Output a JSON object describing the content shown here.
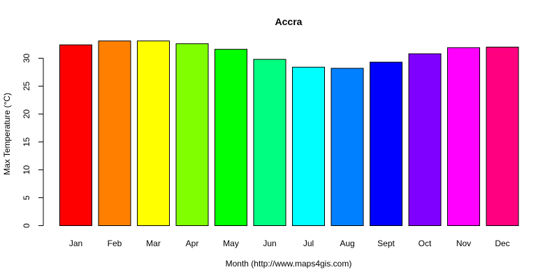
{
  "chart_data": {
    "type": "bar",
    "title": "Accra",
    "xlabel": "Month (http://www.maps4gis.com)",
    "ylabel": "Max Temperature (°C)",
    "categories": [
      "Jan",
      "Feb",
      "Mar",
      "Apr",
      "May",
      "Jun",
      "Jul",
      "Aug",
      "Sept",
      "Oct",
      "Nov",
      "Dec"
    ],
    "values": [
      32.4,
      33.1,
      33.1,
      32.6,
      31.6,
      29.8,
      28.4,
      28.2,
      29.3,
      30.8,
      31.9,
      32.0
    ],
    "colors": [
      "#FF0000",
      "#FF8000",
      "#FFFF00",
      "#80FF00",
      "#00FF00",
      "#00FF80",
      "#00FFFF",
      "#0080FF",
      "#0000FF",
      "#8000FF",
      "#FF00FF",
      "#FF0080"
    ],
    "yticks": [
      0,
      5,
      10,
      15,
      20,
      25,
      30
    ],
    "ylim": [
      0,
      33.1
    ],
    "grid": false,
    "legend": "none"
  }
}
